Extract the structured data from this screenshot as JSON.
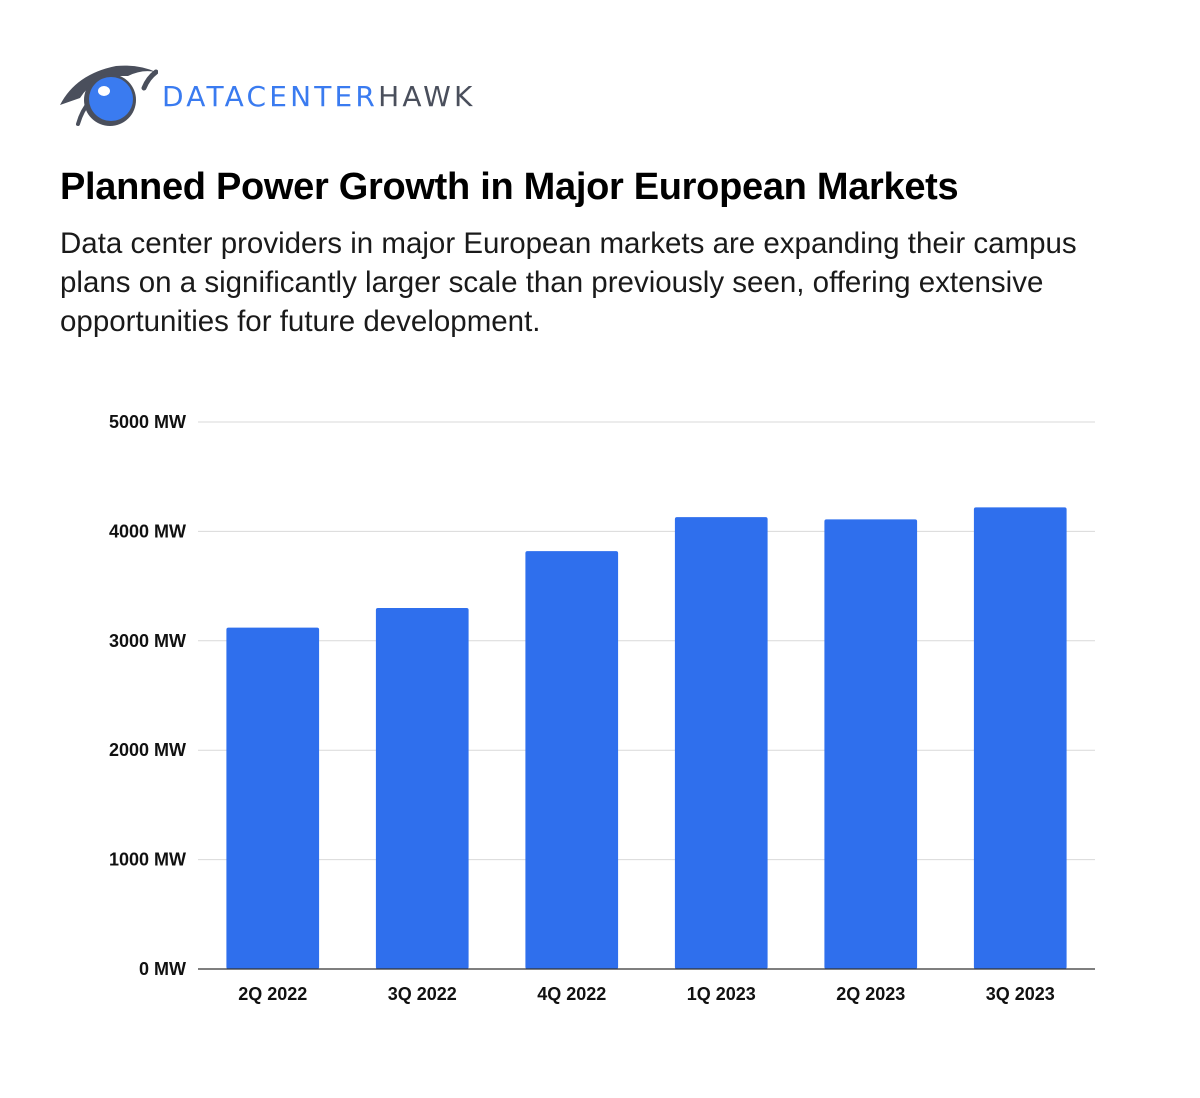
{
  "brand": {
    "name_part1": "DATACENTER",
    "name_part2": "HAWK",
    "icon": "eye-logo-icon",
    "accent_color": "#3a7bf0",
    "dark_color": "#4a4f5c"
  },
  "header": {
    "title": "Planned Power Growth in Major European Markets",
    "subtitle": "Data center providers in major European markets are expanding their campus plans on a significantly larger scale than previously seen, offering extensive opportunities for future development."
  },
  "chart_data": {
    "type": "bar",
    "categories": [
      "2Q 2022",
      "3Q 2022",
      "4Q 2022",
      "1Q 2023",
      "2Q 2023",
      "3Q 2023"
    ],
    "values": [
      3120,
      3300,
      3820,
      4130,
      4110,
      4220
    ],
    "unit": "MW",
    "yticks": [
      "0 MW",
      "1000 MW",
      "2000 MW",
      "3000 MW",
      "4000 MW",
      "5000 MW"
    ],
    "ylim": [
      0,
      5000
    ],
    "grid": true,
    "bar_color": "#2f6fed"
  }
}
